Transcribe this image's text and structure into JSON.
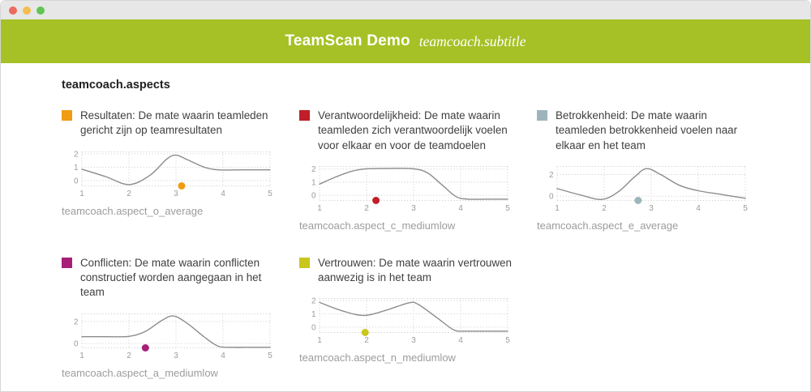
{
  "window_controls": {
    "close": "close",
    "minimize": "minimize",
    "maximize": "maximize",
    "colors": {
      "close": "#ED6A5E",
      "minimize": "#F4BE4F",
      "maximize": "#61C554",
      "bar": "#E7E7E7"
    }
  },
  "header": {
    "title": "TeamScan Demo",
    "subtitle": "teamcoach.subtitle",
    "bg": "#A5C125"
  },
  "section": {
    "heading": "teamcoach.aspects"
  },
  "chart_style": {
    "grid_color": "#cfcfcf",
    "curve_color": "#8c8c8c",
    "tick_color": "#9b9b9b"
  },
  "cards": [
    {
      "color": "#F09D13",
      "description": "Resultaten: De mate waarin teamleden gericht zijn op teamresultaten",
      "label": "teamcoach.aspect_o_average",
      "chart": {
        "type": "line",
        "x_ticks": [
          1,
          2,
          3,
          4,
          5
        ],
        "y_ticks": [
          0,
          1,
          2
        ],
        "y_range": [
          -0.4,
          2.15
        ],
        "curve": [
          [
            1,
            0.85
          ],
          [
            1.5,
            0.3
          ],
          [
            2,
            -0.3
          ],
          [
            2.45,
            0.4
          ],
          [
            2.8,
            1.6
          ],
          [
            3.0,
            1.9
          ],
          [
            3.25,
            1.55
          ],
          [
            3.6,
            1.0
          ],
          [
            3.9,
            0.8
          ],
          [
            4.4,
            0.8
          ],
          [
            5,
            0.8
          ]
        ],
        "dot": [
          3.12,
          -0.4
        ]
      }
    },
    {
      "color": "#C01E28",
      "description": "Verantwoordelijkheid: De mate waarin teamleden zich verantwoordelijk voelen voor elkaar en voor de teamdoelen",
      "label": "teamcoach.aspect_c_mediumlow",
      "chart": {
        "type": "line",
        "x_ticks": [
          1,
          2,
          3,
          4,
          5
        ],
        "y_ticks": [
          0,
          1,
          2
        ],
        "y_range": [
          -0.4,
          2.2
        ],
        "curve": [
          [
            1,
            0.85
          ],
          [
            1.35,
            1.4
          ],
          [
            1.7,
            1.85
          ],
          [
            2.0,
            2.02
          ],
          [
            2.5,
            2.05
          ],
          [
            3.0,
            2.02
          ],
          [
            3.3,
            1.7
          ],
          [
            3.6,
            0.8
          ],
          [
            3.9,
            -0.1
          ],
          [
            4.15,
            -0.3
          ],
          [
            4.5,
            -0.3
          ],
          [
            5,
            -0.3
          ]
        ],
        "dot": [
          2.2,
          -0.4
        ]
      }
    },
    {
      "color": "#9DB4BC",
      "description": "Betrokkenheid: De mate waarin teamleden betrokkenheid voelen naar elkaar en het team",
      "label": "teamcoach.aspect_e_average",
      "chart": {
        "type": "line",
        "x_ticks": [
          1,
          2,
          3,
          4,
          5
        ],
        "y_ticks": [
          0,
          2
        ],
        "y_range": [
          -0.4,
          2.75
        ],
        "curve": [
          [
            1,
            0.7
          ],
          [
            1.5,
            0.1
          ],
          [
            1.95,
            -0.3
          ],
          [
            2.3,
            0.4
          ],
          [
            2.65,
            1.8
          ],
          [
            2.9,
            2.55
          ],
          [
            3.2,
            2.0
          ],
          [
            3.6,
            1.0
          ],
          [
            4.0,
            0.5
          ],
          [
            4.5,
            0.15
          ],
          [
            5,
            -0.2
          ]
        ],
        "dot": [
          2.72,
          -0.4
        ]
      }
    },
    {
      "color": "#A62078",
      "description": "Conflicten: De mate waarin conflicten constructief worden aangegaan in het team",
      "label": "teamcoach.aspect_a_mediumlow",
      "chart": {
        "type": "line",
        "x_ticks": [
          1,
          2,
          3,
          4,
          5
        ],
        "y_ticks": [
          0,
          2
        ],
        "y_range": [
          -0.4,
          2.7
        ],
        "curve": [
          [
            1,
            0.62
          ],
          [
            1.5,
            0.62
          ],
          [
            2.0,
            0.65
          ],
          [
            2.35,
            1.1
          ],
          [
            2.7,
            2.1
          ],
          [
            2.95,
            2.5
          ],
          [
            3.25,
            1.8
          ],
          [
            3.6,
            0.6
          ],
          [
            3.9,
            -0.25
          ],
          [
            4.2,
            -0.35
          ],
          [
            4.6,
            -0.35
          ],
          [
            5,
            -0.35
          ]
        ],
        "dot": [
          2.35,
          -0.4
        ]
      }
    },
    {
      "color": "#C9C61D",
      "description": "Vertrouwen: De mate waarin vertrouwen aanwezig is in het team",
      "label": "teamcoach.aspect_n_mediumlow",
      "chart": {
        "type": "line",
        "x_ticks": [
          1,
          2,
          3,
          4,
          5
        ],
        "y_ticks": [
          0,
          1,
          2
        ],
        "y_range": [
          -0.4,
          2.15
        ],
        "curve": [
          [
            1,
            1.85
          ],
          [
            1.5,
            1.2
          ],
          [
            1.95,
            0.88
          ],
          [
            2.4,
            1.25
          ],
          [
            2.9,
            1.82
          ],
          [
            3.1,
            1.7
          ],
          [
            3.5,
            0.7
          ],
          [
            3.85,
            -0.2
          ],
          [
            4.1,
            -0.3
          ],
          [
            4.5,
            -0.3
          ],
          [
            5,
            -0.3
          ]
        ],
        "dot": [
          1.97,
          -0.4
        ]
      }
    }
  ]
}
